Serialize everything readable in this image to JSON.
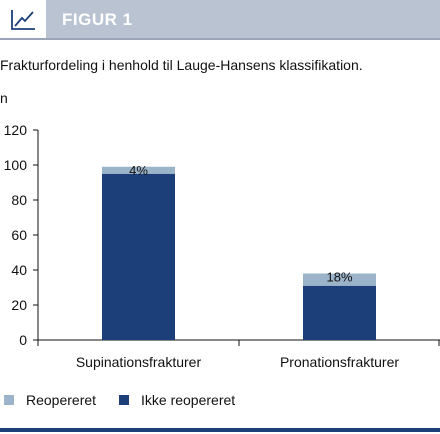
{
  "header": {
    "title": "FIGUR 1",
    "icon": "line-chart-icon"
  },
  "subtitle": "Frakturfordeling i henhold til Lauge-Hansens klassifikation.",
  "chart_data": {
    "type": "bar",
    "stacked": true,
    "title": "",
    "ylabel": "n",
    "xlabel": "",
    "ylim": [
      0,
      120
    ],
    "yticks": [
      0,
      20,
      40,
      60,
      80,
      100,
      120
    ],
    "categories": [
      "Supinationsfrakturer",
      "Pronationsfrakturer"
    ],
    "series": [
      {
        "name": "Ikke reopereret",
        "values": [
          95,
          31
        ],
        "color": "#1c3f7a"
      },
      {
        "name": "Reopereret",
        "values": [
          4,
          7
        ],
        "color": "#9cb4c9"
      }
    ],
    "bar_labels": [
      "4%",
      "18%"
    ],
    "legend_position": "bottom-left",
    "grid": false
  }
}
